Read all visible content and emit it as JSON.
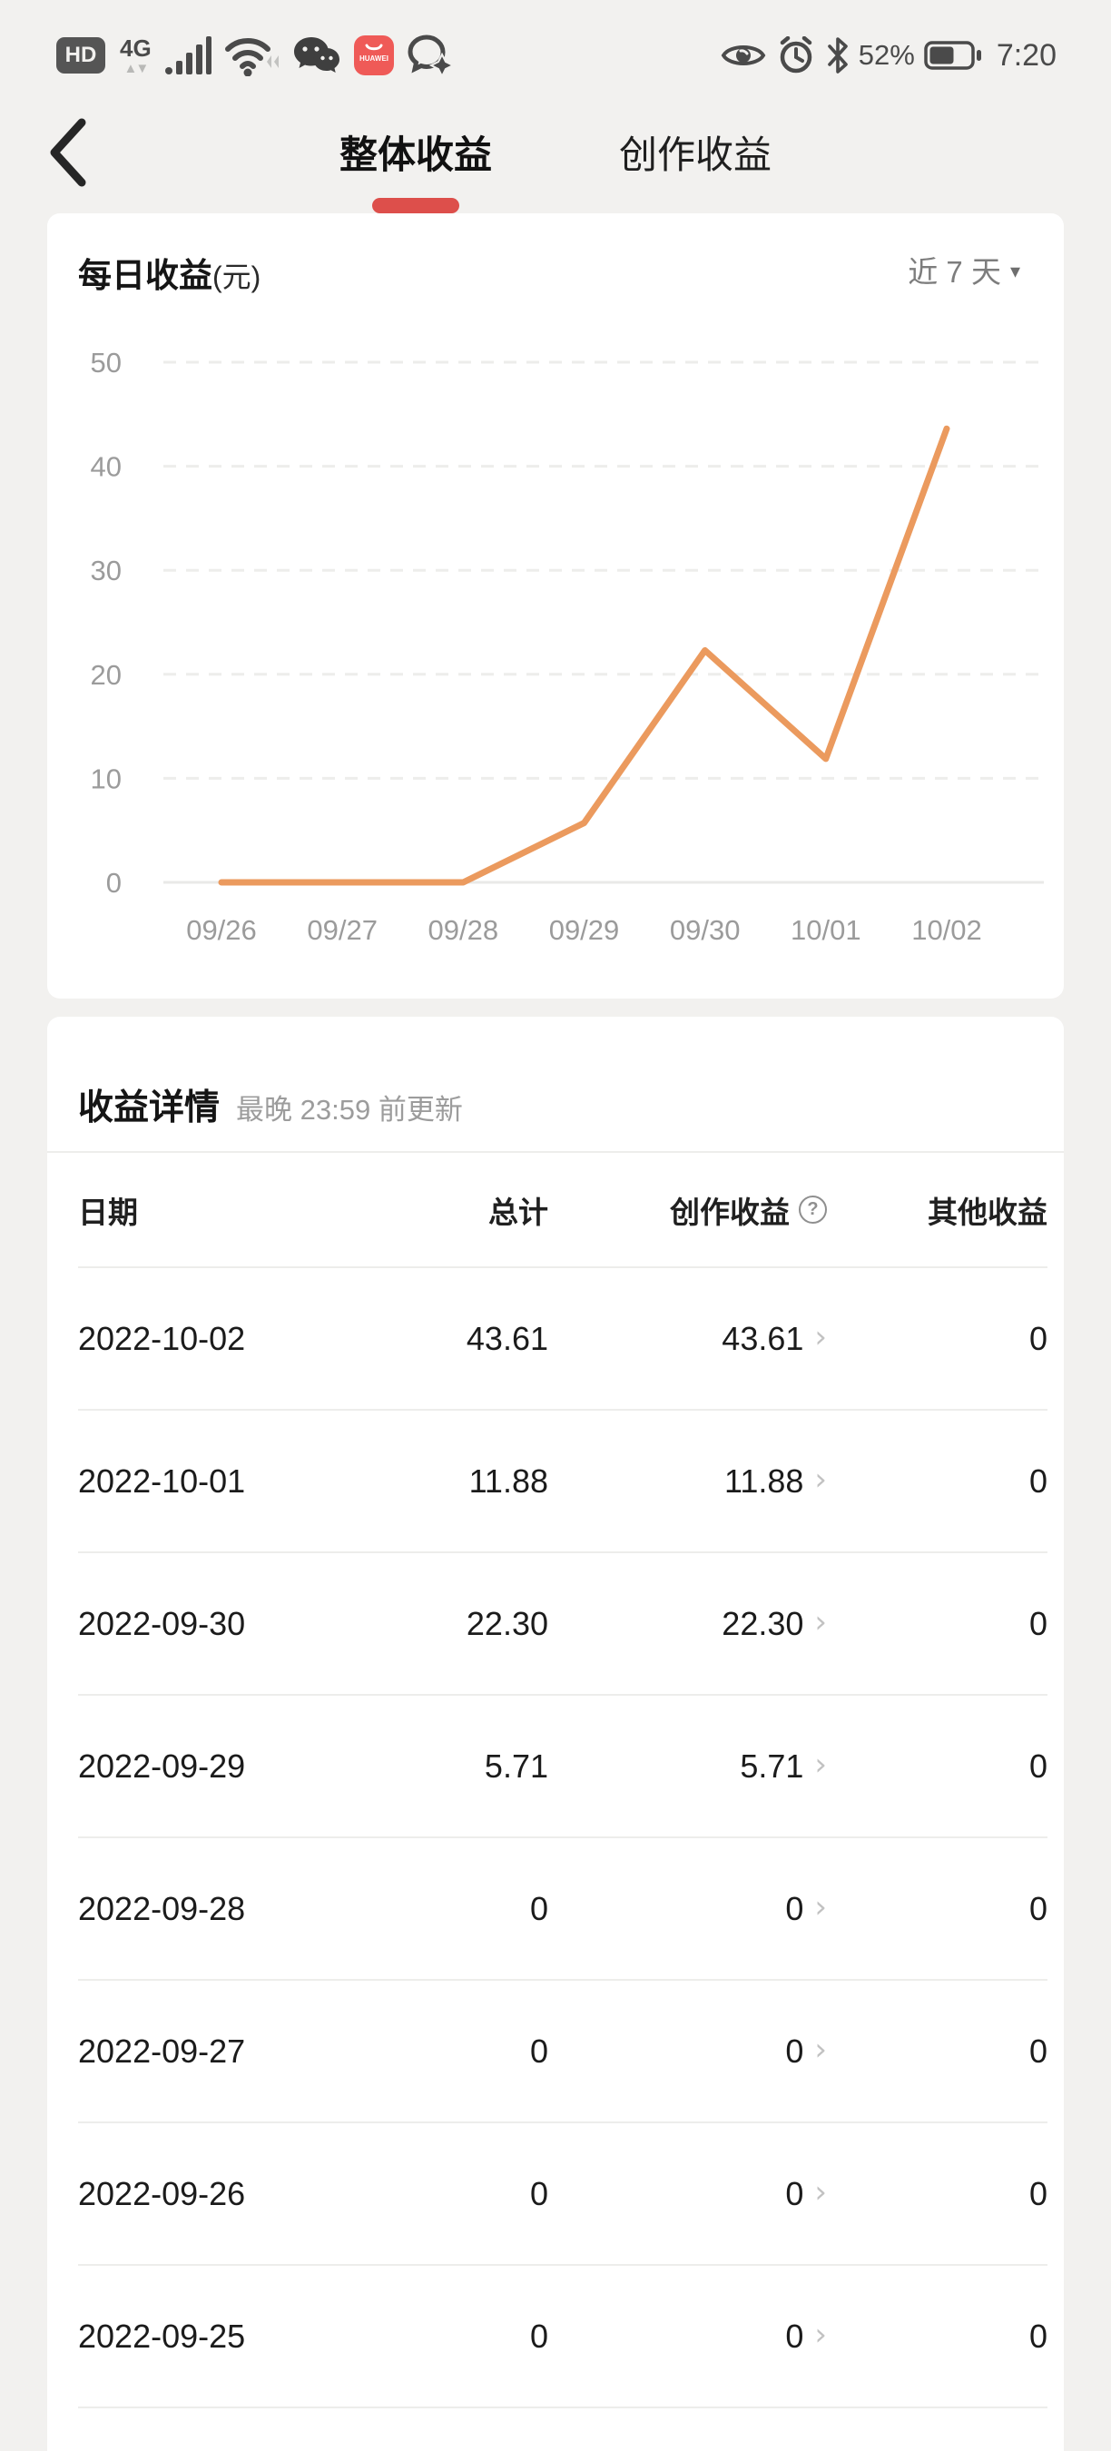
{
  "colors": {
    "accent_red": "#DD4F4B",
    "line_orange": "#EB9A5E",
    "status_icon_gray": "#4a4a4a",
    "appgallery_red": "#ef5a57"
  },
  "status_bar": {
    "hd": "HD",
    "network": "4G",
    "battery_pct": "52%",
    "time": "7:20"
  },
  "nav": {
    "tabs": [
      {
        "label": "整体收益",
        "active": true
      },
      {
        "label": "创作收益",
        "active": false
      }
    ]
  },
  "chart_card": {
    "title": "每日收益",
    "title_unit": "(元)",
    "range_selector": "近 7 天",
    "caret": "▾"
  },
  "chart_data": {
    "type": "line",
    "title": "每日收益(元)",
    "x": [
      "09/26",
      "09/27",
      "09/28",
      "09/29",
      "09/30",
      "10/01",
      "10/02"
    ],
    "values": [
      0,
      0,
      0,
      5.71,
      22.3,
      11.88,
      43.61
    ],
    "ylim": [
      0,
      50
    ],
    "yticks": [
      0,
      10,
      20,
      30,
      40,
      50
    ],
    "grid": "dashed horizontal, solid zero line",
    "legend": "none",
    "line_color": "#EB9A5E"
  },
  "details_card": {
    "title": "收益详情",
    "subtitle": "最晚 23:59 前更新",
    "columns": {
      "date": "日期",
      "total": "总计",
      "creation": "创作收益",
      "other": "其他收益"
    },
    "help_glyph": "?",
    "chevron_glyph": "›",
    "rows": [
      {
        "date": "2022-10-02",
        "total": "43.61",
        "creation": "43.61",
        "other": "0"
      },
      {
        "date": "2022-10-01",
        "total": "11.88",
        "creation": "11.88",
        "other": "0"
      },
      {
        "date": "2022-09-30",
        "total": "22.30",
        "creation": "22.30",
        "other": "0"
      },
      {
        "date": "2022-09-29",
        "total": "5.71",
        "creation": "5.71",
        "other": "0"
      },
      {
        "date": "2022-09-28",
        "total": "0",
        "creation": "0",
        "other": "0"
      },
      {
        "date": "2022-09-27",
        "total": "0",
        "creation": "0",
        "other": "0"
      },
      {
        "date": "2022-09-26",
        "total": "0",
        "creation": "0",
        "other": "0"
      },
      {
        "date": "2022-09-25",
        "total": "0",
        "creation": "0",
        "other": "0"
      }
    ]
  }
}
